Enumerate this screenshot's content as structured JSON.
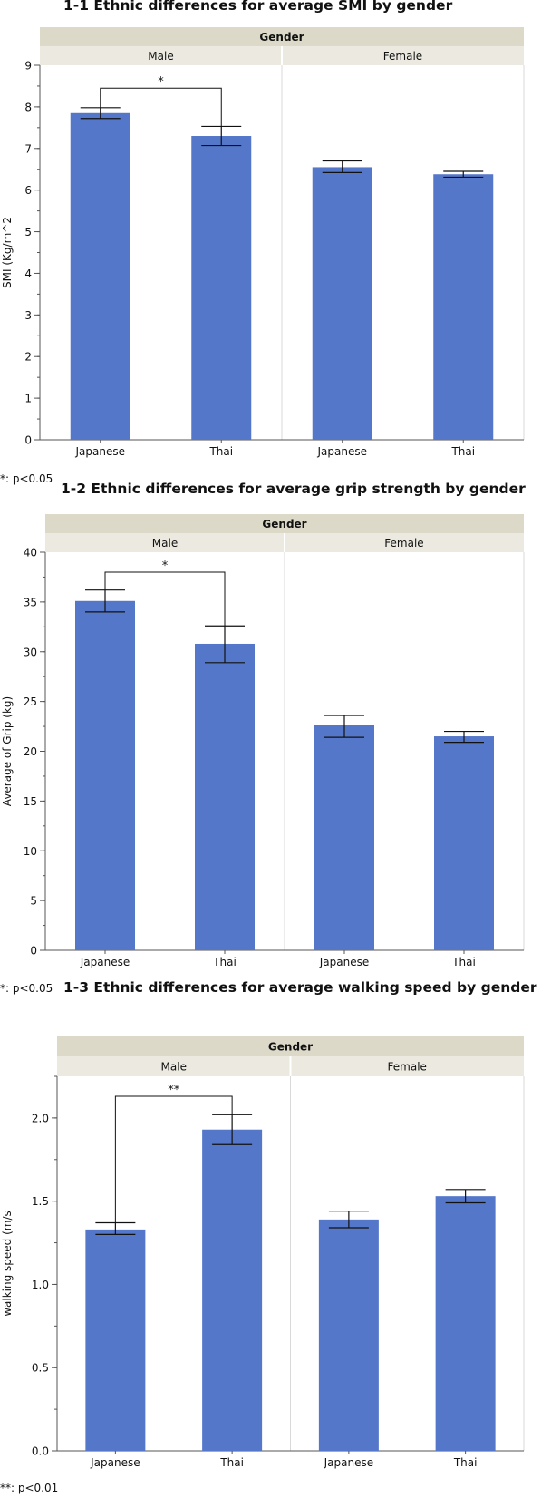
{
  "colors": {
    "bar": "#5577c9",
    "header": "#dcd9c9",
    "subheader": "#eceae0",
    "axis": "#555555",
    "grid": "#d9d9d9"
  },
  "chart_data": [
    {
      "type": "bar",
      "title": "1-1 Ethnic differences for average SMI by gender",
      "header": "Gender",
      "groups": [
        "Male",
        "Female"
      ],
      "categories": [
        "Japanese",
        "Thai",
        "Japanese",
        "Thai"
      ],
      "values": [
        7.85,
        7.3,
        6.55,
        6.38
      ],
      "err_low": [
        7.72,
        7.07,
        6.42,
        6.31
      ],
      "err_high": [
        7.98,
        7.53,
        6.7,
        6.45
      ],
      "ylabel": "SMI (Kg/m^2",
      "ylim": [
        0,
        9
      ],
      "yticks": [
        0,
        1,
        2,
        3,
        4,
        5,
        6,
        7,
        8,
        9
      ],
      "ytick_labels": [
        "0",
        "1",
        "2",
        "3",
        "4",
        "5",
        "6",
        "7",
        "8",
        "9"
      ],
      "bracket_level": 8.45,
      "significance": "*",
      "footnote": "*: p<0.05"
    },
    {
      "type": "bar",
      "title": "1-2 Ethnic differences for average grip strength by gender",
      "header": "Gender",
      "groups": [
        "Male",
        "Female"
      ],
      "categories": [
        "Japanese",
        "Thai",
        "Japanese",
        "Thai"
      ],
      "values": [
        35.1,
        30.8,
        22.6,
        21.5
      ],
      "err_low": [
        34.0,
        28.9,
        21.4,
        20.9
      ],
      "err_high": [
        36.2,
        32.6,
        23.6,
        22.0
      ],
      "ylabel": "Average of Grip (kg)",
      "ylim": [
        0,
        40
      ],
      "yticks": [
        0,
        5,
        10,
        15,
        20,
        25,
        30,
        35,
        40
      ],
      "ytick_labels": [
        "0",
        "5",
        "10",
        "15",
        "20",
        "25",
        "30",
        "35",
        "40"
      ],
      "bracket_level": 38.0,
      "significance": "*",
      "footnote": "*: p<0.05"
    },
    {
      "type": "bar",
      "title": "1-3 Ethnic differences for average walking speed by gender",
      "header": "Gender",
      "groups": [
        "Male",
        "Female"
      ],
      "categories": [
        "Japanese",
        "Thai",
        "Japanese",
        "Thai"
      ],
      "values": [
        1.33,
        1.93,
        1.39,
        1.53
      ],
      "err_low": [
        1.3,
        1.84,
        1.34,
        1.49
      ],
      "err_high": [
        1.37,
        2.02,
        1.44,
        1.57
      ],
      "ylabel": "walking speed (m/s",
      "ylim": [
        0,
        2.25
      ],
      "yticks": [
        0,
        0.5,
        1.0,
        1.5,
        2.0
      ],
      "ytick_labels": [
        "0.0",
        "0.5",
        "1.0",
        "1.5",
        "2.0"
      ],
      "bracket_level": 2.13,
      "significance": "**",
      "footnote": "**: p<0.01"
    }
  ]
}
